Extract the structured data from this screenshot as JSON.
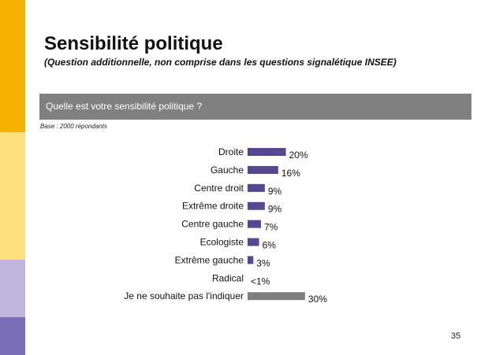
{
  "title": "Sensibilité politique",
  "subtitle": "(Question additionnelle, non comprise dans les questions signalétique INSEE)",
  "question": "Quelle est votre sensibilité politique ?",
  "base": "Base : 2000 répondants",
  "page_number": "35",
  "colors": {
    "bar_primary": "#55488f",
    "bar_other": "#7f7f7f",
    "question_band": "#808080",
    "side_orange": "#f5b300",
    "side_yellow": "#fde17c",
    "side_lavender": "#c0b6dc",
    "side_purple": "#7a6eb8"
  },
  "chart_data": {
    "type": "bar",
    "orientation": "horizontal",
    "categories": [
      "Droite",
      "Gauche",
      "Centre droit",
      "Extrême droite",
      "Centre gauche",
      "Ecologiste",
      "Extrême gauche",
      "Radical",
      "Je ne souhaite pas l'indiquer"
    ],
    "values": [
      20,
      16,
      9,
      9,
      7,
      6,
      3,
      0.5,
      30
    ],
    "labels": [
      "20%",
      "16%",
      "9%",
      "9%",
      "7%",
      "6%",
      "3%",
      "<1%",
      "30%"
    ],
    "bar_colors": [
      "primary",
      "primary",
      "primary",
      "primary",
      "primary",
      "primary",
      "primary",
      "primary",
      "other"
    ],
    "unit": "%",
    "grid": false,
    "legend": "none"
  }
}
